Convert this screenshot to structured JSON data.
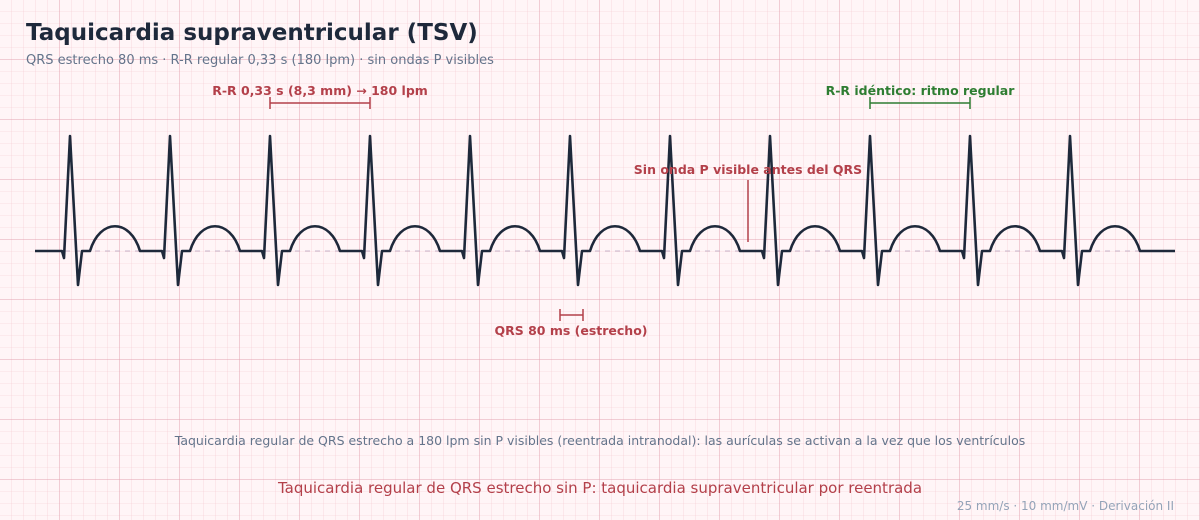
{
  "header": {
    "title": "Taquicardia supraventricular (TSV)",
    "subtitle": "QRS estrecho 80 ms · R-R regular 0,33 s (180 lpm) · sin ondas P visibles"
  },
  "annotations": {
    "rr_interval": "R-R 0,33 s (8,3 mm) → 180 lpm",
    "rr_identical": "R-R idéntico: ritmo regular",
    "no_p_wave": "Sin onda P visible antes del QRS",
    "qrs_width": "QRS 80 ms (estrecho)"
  },
  "caption": "Taquicardia regular de QRS estrecho a 180 lpm sin P visibles (reentrada intranodal): las aurículas se activan a la vez que los ventrículos",
  "conclusion": "Taquicardia regular de QRS estrecho sin P: taquicardia supraventricular por reentrada",
  "footer": "25 mm/s · 10 mm/mV · Derivación II"
}
